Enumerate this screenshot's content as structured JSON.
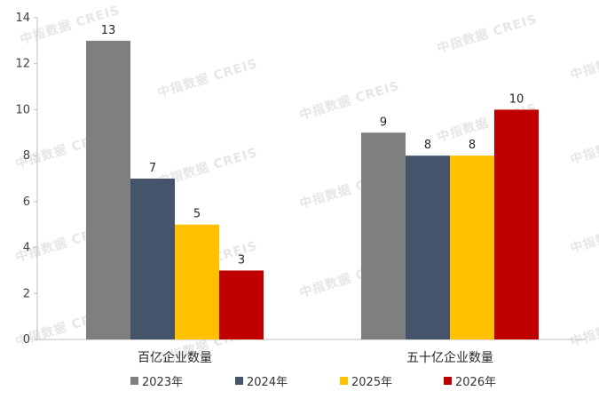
{
  "watermark": {
    "text": "中指数据 CREIS"
  },
  "chart_data": {
    "type": "bar",
    "title": "",
    "xlabel": "",
    "ylabel": "",
    "categories": [
      "百亿企业数量",
      "五十亿企业数量"
    ],
    "series": [
      {
        "name": "2023年",
        "color": "#7f7f7f",
        "values": [
          13,
          9
        ]
      },
      {
        "name": "2024年",
        "color": "#44546a",
        "values": [
          7,
          8
        ]
      },
      {
        "name": "2025年",
        "color": "#ffc000",
        "values": [
          5,
          8
        ]
      },
      {
        "name": "2026年",
        "color": "#c00000",
        "values": [
          3,
          10
        ]
      }
    ],
    "ylim": [
      0,
      14
    ],
    "yticks": [
      0,
      2,
      4,
      6,
      8,
      10,
      12,
      14
    ],
    "grid": false,
    "legend": "bottom"
  }
}
